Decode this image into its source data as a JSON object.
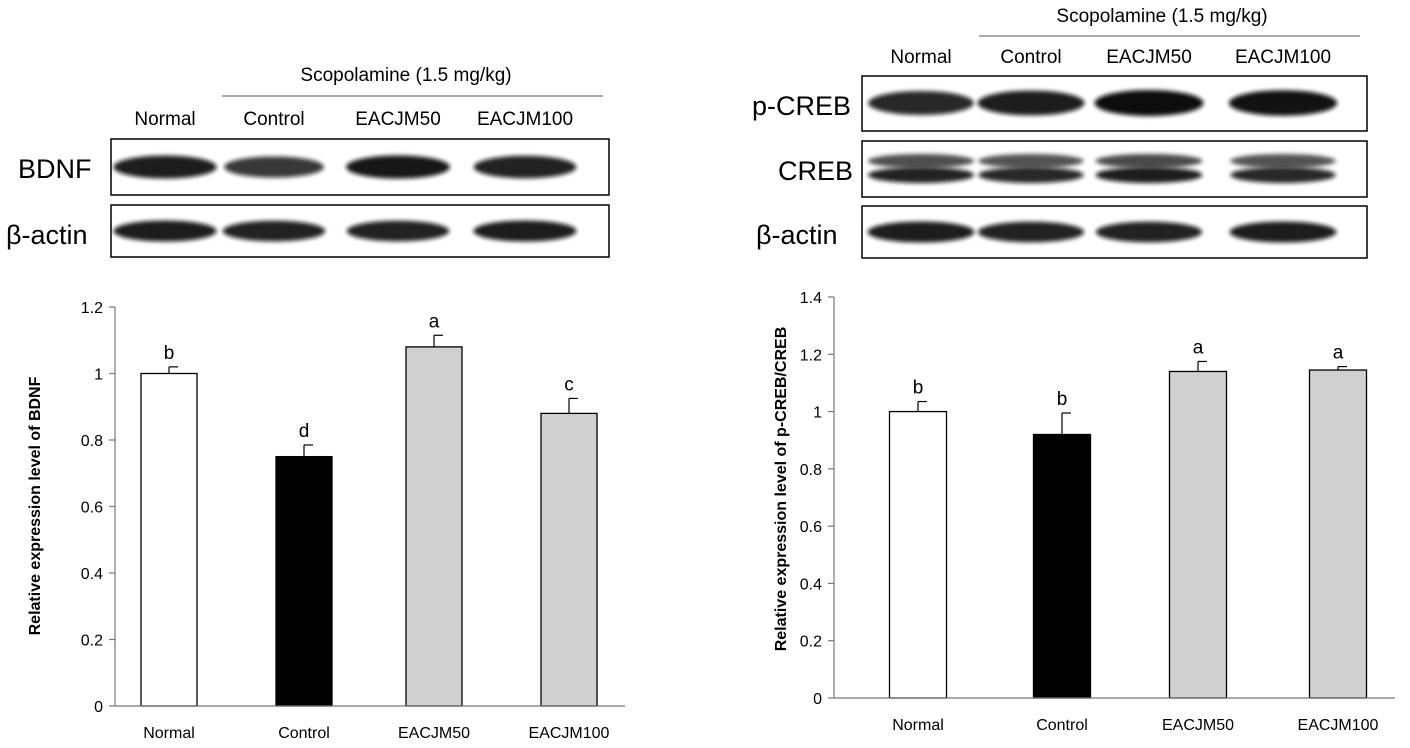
{
  "panels": [
    {
      "blot": {
        "header": "Scopolamine (1.5 mg/kg)",
        "lanes": [
          "Normal",
          "Control",
          "EACJM50",
          "EACJM100"
        ],
        "rows": [
          {
            "label": "BDNF",
            "intensity": [
              0.85,
              0.6,
              0.9,
              0.8
            ]
          },
          {
            "label": "β-actin",
            "intensity": [
              0.85,
              0.8,
              0.8,
              0.85
            ]
          }
        ]
      }
    },
    {
      "blot": {
        "header": "Scopolamine (1.5 mg/kg)",
        "lanes": [
          "Normal",
          "Control",
          "EACJM50",
          "EACJM100"
        ],
        "rows": [
          {
            "label": "p-CREB",
            "intensity": [
              0.75,
              0.85,
              1.0,
              0.95
            ]
          },
          {
            "label": "CREB",
            "intensity": [
              0.8,
              0.75,
              0.85,
              0.75
            ]
          },
          {
            "label": "β-actin",
            "intensity": [
              0.85,
              0.8,
              0.8,
              0.85
            ]
          }
        ]
      }
    }
  ],
  "chart_data": [
    {
      "type": "bar",
      "categories": [
        "Normal",
        "Control",
        "EACJM50",
        "EACJM100"
      ],
      "values": [
        1.0,
        0.75,
        1.08,
        0.88
      ],
      "errors": [
        0.02,
        0.035,
        0.035,
        0.045
      ],
      "letters": [
        "b",
        "d",
        "a",
        "c"
      ],
      "colors": [
        "#ffffff",
        "#000000",
        "#d0d0d0",
        "#d0d0d0"
      ],
      "title": "",
      "xlabel": "",
      "ylabel": "Relative expression level of BDNF",
      "ylim": [
        0,
        1.2
      ],
      "yticks": [
        "0",
        "0.2",
        "0.4",
        "0.6",
        "0.8",
        "1",
        "1.2"
      ],
      "grid": false
    },
    {
      "type": "bar",
      "categories": [
        "Normal",
        "Control",
        "EACJM50",
        "EACJM100"
      ],
      "values": [
        1.0,
        0.92,
        1.14,
        1.145
      ],
      "errors": [
        0.035,
        0.075,
        0.035,
        0.012
      ],
      "letters": [
        "b",
        "b",
        "a",
        "a"
      ],
      "colors": [
        "#ffffff",
        "#000000",
        "#d0d0d0",
        "#d0d0d0"
      ],
      "title": "",
      "xlabel": "",
      "ylabel": "Relative expression level of p-CREB/CREB",
      "ylim": [
        0,
        1.4
      ],
      "yticks": [
        "0",
        "0.2",
        "0.4",
        "0.6",
        "0.8",
        "1",
        "1.2",
        "1.4"
      ],
      "grid": false
    }
  ]
}
